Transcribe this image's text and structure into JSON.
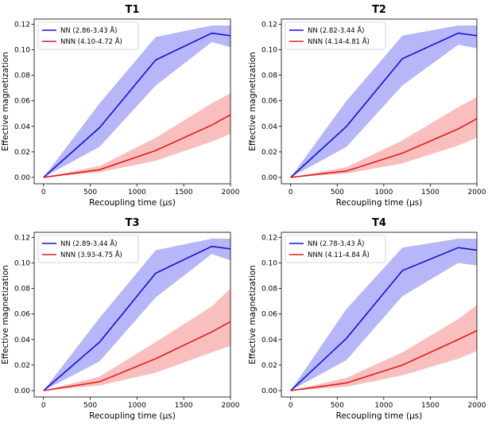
{
  "colors": {
    "nn_line": "#1010d8",
    "nn_band": "#a9a9f7",
    "nnn_line": "#e41a1a",
    "nnn_band": "#f8b4b4"
  },
  "chart_data": [
    {
      "type": "line",
      "title": "T1",
      "xlabel": "Recoupling time (µs)",
      "ylabel": "Effective magnetization",
      "xlim": [
        -100,
        2000
      ],
      "ylim": [
        -0.005,
        0.124
      ],
      "xticks": [
        "0",
        "500",
        "1000",
        "1500",
        "2000"
      ],
      "yticks": [
        "0.00",
        "0.02",
        "0.04",
        "0.06",
        "0.08",
        "0.10",
        "0.12"
      ],
      "legend_position": "top-left",
      "x": [
        0,
        600,
        1200,
        1800,
        2000
      ],
      "series": [
        {
          "name": "NN (2.86-3.43 Å)",
          "values": [
            0.0,
            0.039,
            0.092,
            0.113,
            0.111
          ],
          "lower": [
            0.0,
            0.024,
            0.072,
            0.106,
            0.102
          ],
          "upper": [
            0.0,
            0.058,
            0.11,
            0.119,
            0.119
          ]
        },
        {
          "name": "NNN (4.10-4.72 Å)",
          "values": [
            0.0,
            0.006,
            0.021,
            0.041,
            0.049
          ],
          "lower": [
            0.0,
            0.004,
            0.013,
            0.028,
            0.034
          ],
          "upper": [
            0.0,
            0.009,
            0.031,
            0.058,
            0.066
          ]
        }
      ]
    },
    {
      "type": "line",
      "title": "T2",
      "xlabel": "Recoupling time (µs)",
      "ylabel": "Effective magnetization",
      "xlim": [
        -100,
        2000
      ],
      "ylim": [
        -0.005,
        0.124
      ],
      "xticks": [
        "0",
        "500",
        "1000",
        "1500",
        "2000"
      ],
      "yticks": [
        "0.00",
        "0.02",
        "0.04",
        "0.06",
        "0.08",
        "0.10",
        "0.12"
      ],
      "legend_position": "top-left",
      "x": [
        0,
        600,
        1200,
        1800,
        2000
      ],
      "series": [
        {
          "name": "NN (2.82-3.44 Å)",
          "values": [
            0.0,
            0.04,
            0.093,
            0.113,
            0.111
          ],
          "lower": [
            0.0,
            0.024,
            0.072,
            0.104,
            0.101
          ],
          "upper": [
            0.0,
            0.06,
            0.111,
            0.119,
            0.119
          ]
        },
        {
          "name": "NNN (4.14-4.81 Å)",
          "values": [
            0.0,
            0.005,
            0.019,
            0.038,
            0.046
          ],
          "lower": [
            0.0,
            0.003,
            0.011,
            0.025,
            0.031
          ],
          "upper": [
            0.0,
            0.008,
            0.029,
            0.055,
            0.063
          ]
        }
      ]
    },
    {
      "type": "line",
      "title": "T3",
      "xlabel": "Recoupling time (µs)",
      "ylabel": "Effective magnetization",
      "xlim": [
        -100,
        2000
      ],
      "ylim": [
        -0.005,
        0.124
      ],
      "xticks": [
        "0",
        "500",
        "1000",
        "1500",
        "2000"
      ],
      "yticks": [
        "0.00",
        "0.02",
        "0.04",
        "0.06",
        "0.08",
        "0.10",
        "0.12"
      ],
      "legend_position": "top-left",
      "x": [
        0,
        600,
        1200,
        1800,
        2000
      ],
      "series": [
        {
          "name": "NN (2.89-3.44 Å)",
          "values": [
            0.0,
            0.038,
            0.092,
            0.113,
            0.111
          ],
          "lower": [
            0.0,
            0.023,
            0.073,
            0.107,
            0.102
          ],
          "upper": [
            0.0,
            0.057,
            0.11,
            0.119,
            0.119
          ]
        },
        {
          "name": "NNN (3.93-4.75 Å)",
          "values": [
            0.0,
            0.007,
            0.025,
            0.046,
            0.054
          ],
          "lower": [
            0.0,
            0.004,
            0.014,
            0.03,
            0.035
          ],
          "upper": [
            0.0,
            0.011,
            0.038,
            0.066,
            0.08
          ]
        }
      ]
    },
    {
      "type": "line",
      "title": "T4",
      "xlabel": "Recoupling time (µs)",
      "ylabel": "Effective magnetization",
      "xlim": [
        -100,
        2000
      ],
      "ylim": [
        -0.005,
        0.124
      ],
      "xticks": [
        "0",
        "500",
        "1000",
        "1500",
        "2000"
      ],
      "yticks": [
        "0.00",
        "0.02",
        "0.04",
        "0.06",
        "0.08",
        "0.10",
        "0.12"
      ],
      "legend_position": "top-left",
      "x": [
        0,
        600,
        1200,
        1800,
        2000
      ],
      "series": [
        {
          "name": "NN (2.78-3.43 Å)",
          "values": [
            0.0,
            0.041,
            0.094,
            0.112,
            0.11
          ],
          "lower": [
            0.0,
            0.024,
            0.074,
            0.1,
            0.098
          ],
          "upper": [
            0.0,
            0.064,
            0.112,
            0.119,
            0.119
          ]
        },
        {
          "name": "NNN (4.11-4.84 Å)",
          "values": [
            0.0,
            0.006,
            0.02,
            0.04,
            0.047
          ],
          "lower": [
            0.0,
            0.003,
            0.012,
            0.025,
            0.031
          ],
          "upper": [
            0.0,
            0.01,
            0.03,
            0.056,
            0.067
          ]
        }
      ]
    }
  ]
}
